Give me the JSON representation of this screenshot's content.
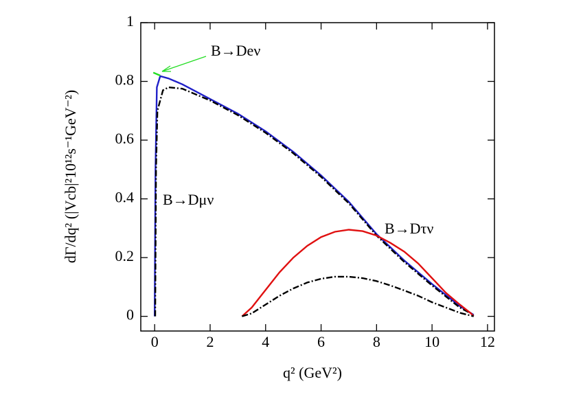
{
  "chart_data": {
    "type": "line",
    "xlabel": "q² (GeV²)",
    "ylabel": "dΓ/dq² (|Vcb|²10¹²s⁻¹GeV⁻²)",
    "xlim": [
      -0.5,
      12.25
    ],
    "ylim": [
      -0.05,
      1
    ],
    "xticks": [
      0,
      2,
      4,
      6,
      8,
      10,
      12
    ],
    "yticks": [
      0,
      0.2,
      0.4,
      0.6,
      0.8,
      1
    ],
    "series": [
      {
        "name": "B→Dμν",
        "color": "#2020c8",
        "style": "solid",
        "x": [
          0,
          0.03,
          0.08,
          0.2,
          0.5,
          1,
          2,
          3,
          4,
          5,
          6,
          7,
          8,
          9,
          10,
          11,
          11.5
        ],
        "values": [
          0,
          0.5,
          0.78,
          0.818,
          0.81,
          0.79,
          0.74,
          0.69,
          0.63,
          0.56,
          0.48,
          0.39,
          0.28,
          0.19,
          0.11,
          0.035,
          0.005
        ]
      },
      {
        "color": "#000000",
        "style": "dashdot",
        "x": [
          0.02,
          0.05,
          0.1,
          0.3,
          0.5,
          1,
          2,
          3,
          4,
          5,
          6,
          7,
          8,
          9,
          10,
          11,
          11.5
        ],
        "values": [
          0,
          0.5,
          0.7,
          0.77,
          0.78,
          0.775,
          0.735,
          0.685,
          0.625,
          0.555,
          0.475,
          0.385,
          0.275,
          0.185,
          0.105,
          0.03,
          0.005
        ]
      },
      {
        "name": "B→Deν",
        "color": "#22dd22",
        "style": "solid",
        "x": [
          -0.05,
          0.2
        ],
        "values": [
          0.83,
          0.82
        ]
      },
      {
        "name": "B→Dτν",
        "color": "#e01010",
        "style": "solid",
        "x": [
          3.15,
          3.5,
          4,
          4.5,
          5,
          5.5,
          6,
          6.5,
          7,
          7.5,
          8,
          8.5,
          9,
          9.5,
          10,
          10.5,
          11,
          11.4,
          11.5
        ],
        "values": [
          0,
          0.03,
          0.09,
          0.15,
          0.2,
          0.24,
          0.27,
          0.288,
          0.295,
          0.29,
          0.275,
          0.25,
          0.22,
          0.18,
          0.13,
          0.08,
          0.04,
          0.01,
          0
        ]
      },
      {
        "color": "#000000",
        "style": "dashdot",
        "x": [
          3.15,
          3.5,
          4,
          4.5,
          5,
          5.5,
          6,
          6.5,
          7,
          7.5,
          8,
          8.5,
          9,
          9.5,
          10,
          10.5,
          11,
          11.5
        ],
        "values": [
          0,
          0.01,
          0.04,
          0.07,
          0.095,
          0.115,
          0.128,
          0.135,
          0.135,
          0.13,
          0.12,
          0.105,
          0.088,
          0.07,
          0.048,
          0.03,
          0.012,
          0
        ]
      }
    ]
  }
}
